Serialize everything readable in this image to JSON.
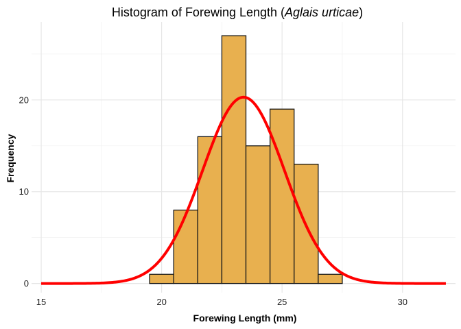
{
  "chart_data": {
    "type": "bar",
    "title_main": "Histogram of Forewing Length (",
    "title_italic": "Aglais urticae",
    "title_close": ")",
    "xlabel": "Forewing Length (mm)",
    "ylabel": "Frequency",
    "xlim": [
      14.6,
      32.2
    ],
    "ylim": [
      -1.0,
      28.5
    ],
    "x_ticks": [
      15,
      20,
      25,
      30
    ],
    "x_minor": [
      17.5,
      22.5,
      27.5
    ],
    "y_ticks": [
      0,
      10,
      20
    ],
    "y_minor": [
      5,
      15,
      25
    ],
    "grid": true,
    "bins": [
      {
        "start": 19.5,
        "end": 20.5,
        "count": 1
      },
      {
        "start": 20.5,
        "end": 21.5,
        "count": 8
      },
      {
        "start": 21.5,
        "end": 22.5,
        "count": 16
      },
      {
        "start": 22.5,
        "end": 23.5,
        "count": 27
      },
      {
        "start": 23.5,
        "end": 24.5,
        "count": 15
      },
      {
        "start": 24.5,
        "end": 25.5,
        "count": 19
      },
      {
        "start": 25.5,
        "end": 26.5,
        "count": 13
      },
      {
        "start": 26.5,
        "end": 27.5,
        "count": 1
      }
    ],
    "density_curve": {
      "type": "normal",
      "mean": 23.4,
      "sd": 1.7,
      "peak": 20.3,
      "x_range": [
        15.0,
        31.8
      ]
    },
    "colors": {
      "bar_fill": "#E8B04F",
      "bar_stroke": "#1a1a1a",
      "curve": "#FF0000",
      "grid_major": "#E6E6E6",
      "grid_minor": "#F2F2F2"
    }
  }
}
